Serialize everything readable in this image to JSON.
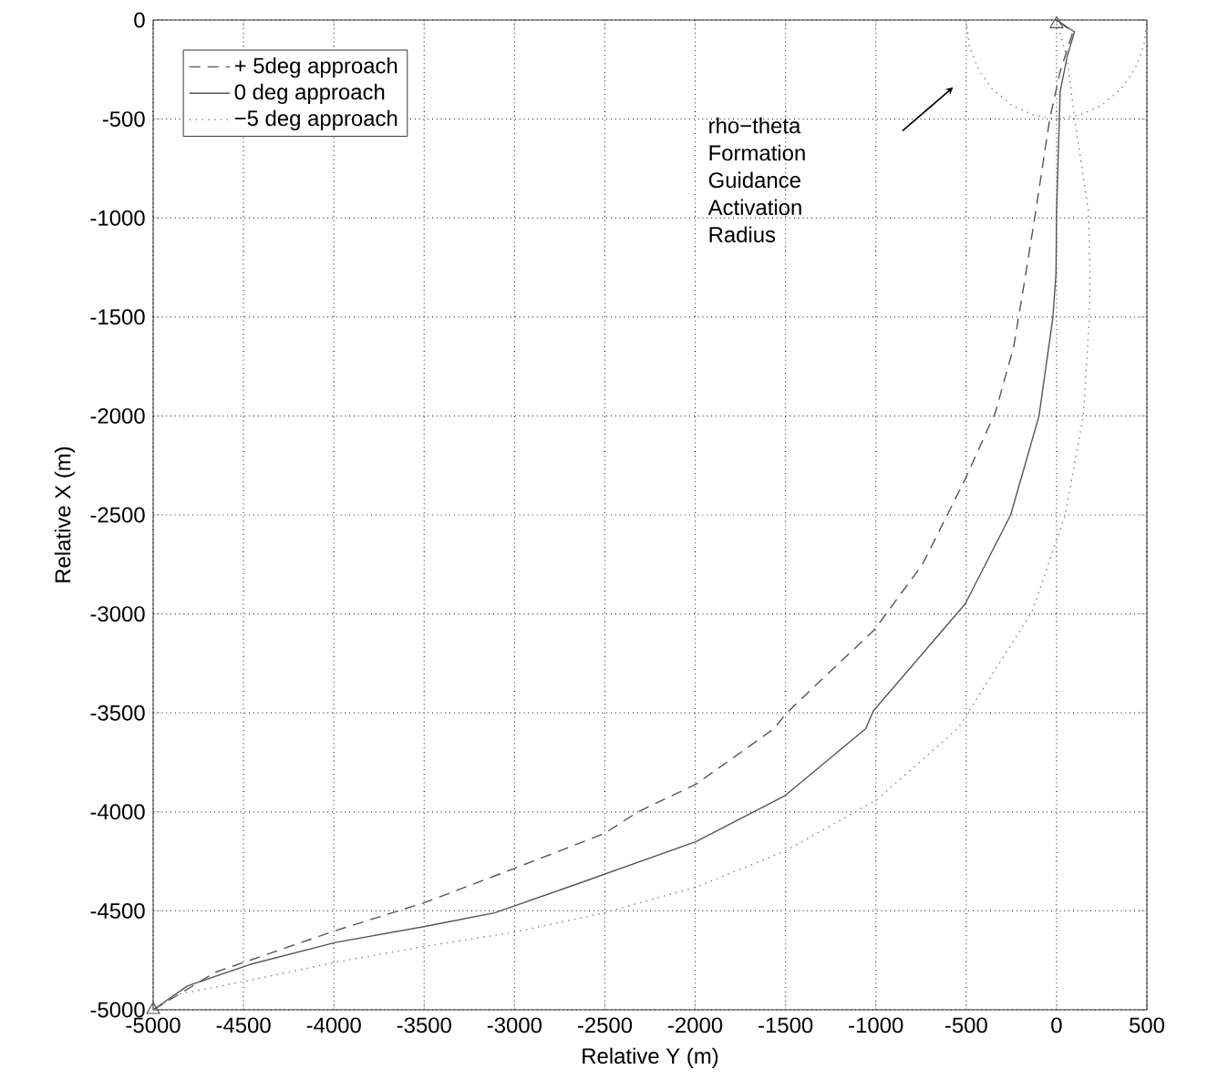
{
  "chart_data": {
    "type": "line",
    "xlabel": "Relative Y (m)",
    "ylabel": "Relative X (m)",
    "xlim": [
      -5000,
      500
    ],
    "ylim": [
      -5000,
      0
    ],
    "xticks": [
      -5000,
      -4500,
      -4000,
      -3500,
      -3000,
      -2500,
      -2000,
      -1500,
      -1000,
      -500,
      0,
      500
    ],
    "yticks": [
      -5000,
      -4500,
      -4000,
      -3500,
      -3000,
      -2500,
      -2000,
      -1500,
      -1000,
      -500,
      0
    ],
    "grid": true,
    "legend": "top left",
    "annotations": [
      "rho−theta Formation Guidance Activation Radius"
    ],
    "series": [
      {
        "name": "+ 5deg approach",
        "color": "#555555",
        "line_style": "dashed",
        "x": [
          -5000,
          -4655,
          -3991,
          -3502,
          -3013,
          -2504,
          -2317,
          -1995,
          -1564,
          -1494,
          -1008,
          -742,
          -506,
          -338,
          -237,
          -170,
          -116,
          -38,
          20,
          80,
          90,
          0
        ],
        "values": [
          -5000,
          -4810,
          -4600,
          -4460,
          -4290,
          -4110,
          -4000,
          -3860,
          -3580,
          -3500,
          -3080,
          -2750,
          -2320,
          -1980,
          -1650,
          -1280,
          -970,
          -500,
          -260,
          -90,
          -60,
          0
        ]
      },
      {
        "name": "0 deg approach",
        "color": "#555555",
        "line_style": "solid",
        "x": [
          -5000,
          -4811,
          -4460,
          -3991,
          -3502,
          -3110,
          -2640,
          -1995,
          -1506,
          -1056,
          -1014,
          -506,
          -254,
          -97,
          -20,
          -3,
          0,
          20,
          60,
          99,
          0
        ],
        "values": [
          -5000,
          -4880,
          -4770,
          -4660,
          -4580,
          -4510,
          -4360,
          -4150,
          -3920,
          -3580,
          -3490,
          -2950,
          -2500,
          -2000,
          -1500,
          -1280,
          -970,
          -360,
          -180,
          -60,
          0
        ]
      },
      {
        "name": "−5 deg approach",
        "color": "#888888",
        "line_style": "dotted",
        "x": [
          -5000,
          -4851,
          -4460,
          -3991,
          -3502,
          -3013,
          -2504,
          -1995,
          -1506,
          -997,
          -547,
          -136,
          48,
          148,
          182,
          185,
          177,
          100,
          60,
          0
        ],
        "values": [
          -5000,
          -4920,
          -4850,
          -4760,
          -4680,
          -4610,
          -4510,
          -4380,
          -4200,
          -3940,
          -3580,
          -2990,
          -2500,
          -2000,
          -1500,
          -1280,
          -970,
          -500,
          -200,
          0
        ]
      },
      {
        "color": "#888888",
        "line_style": "dotted",
        "x": [
          -500,
          -483,
          -433,
          -354,
          -250,
          -129,
          0,
          129,
          250,
          354,
          433,
          483,
          500
        ],
        "values": [
          0,
          -130,
          -250,
          -350,
          -430,
          -480,
          -500,
          -480,
          -430,
          -350,
          -250,
          -130,
          0
        ]
      },
      {
        "type": "scatter",
        "marker": "triangle",
        "color": "#555555",
        "x": [
          -5000,
          0
        ],
        "values": [
          -5000,
          -20
        ]
      }
    ]
  }
}
